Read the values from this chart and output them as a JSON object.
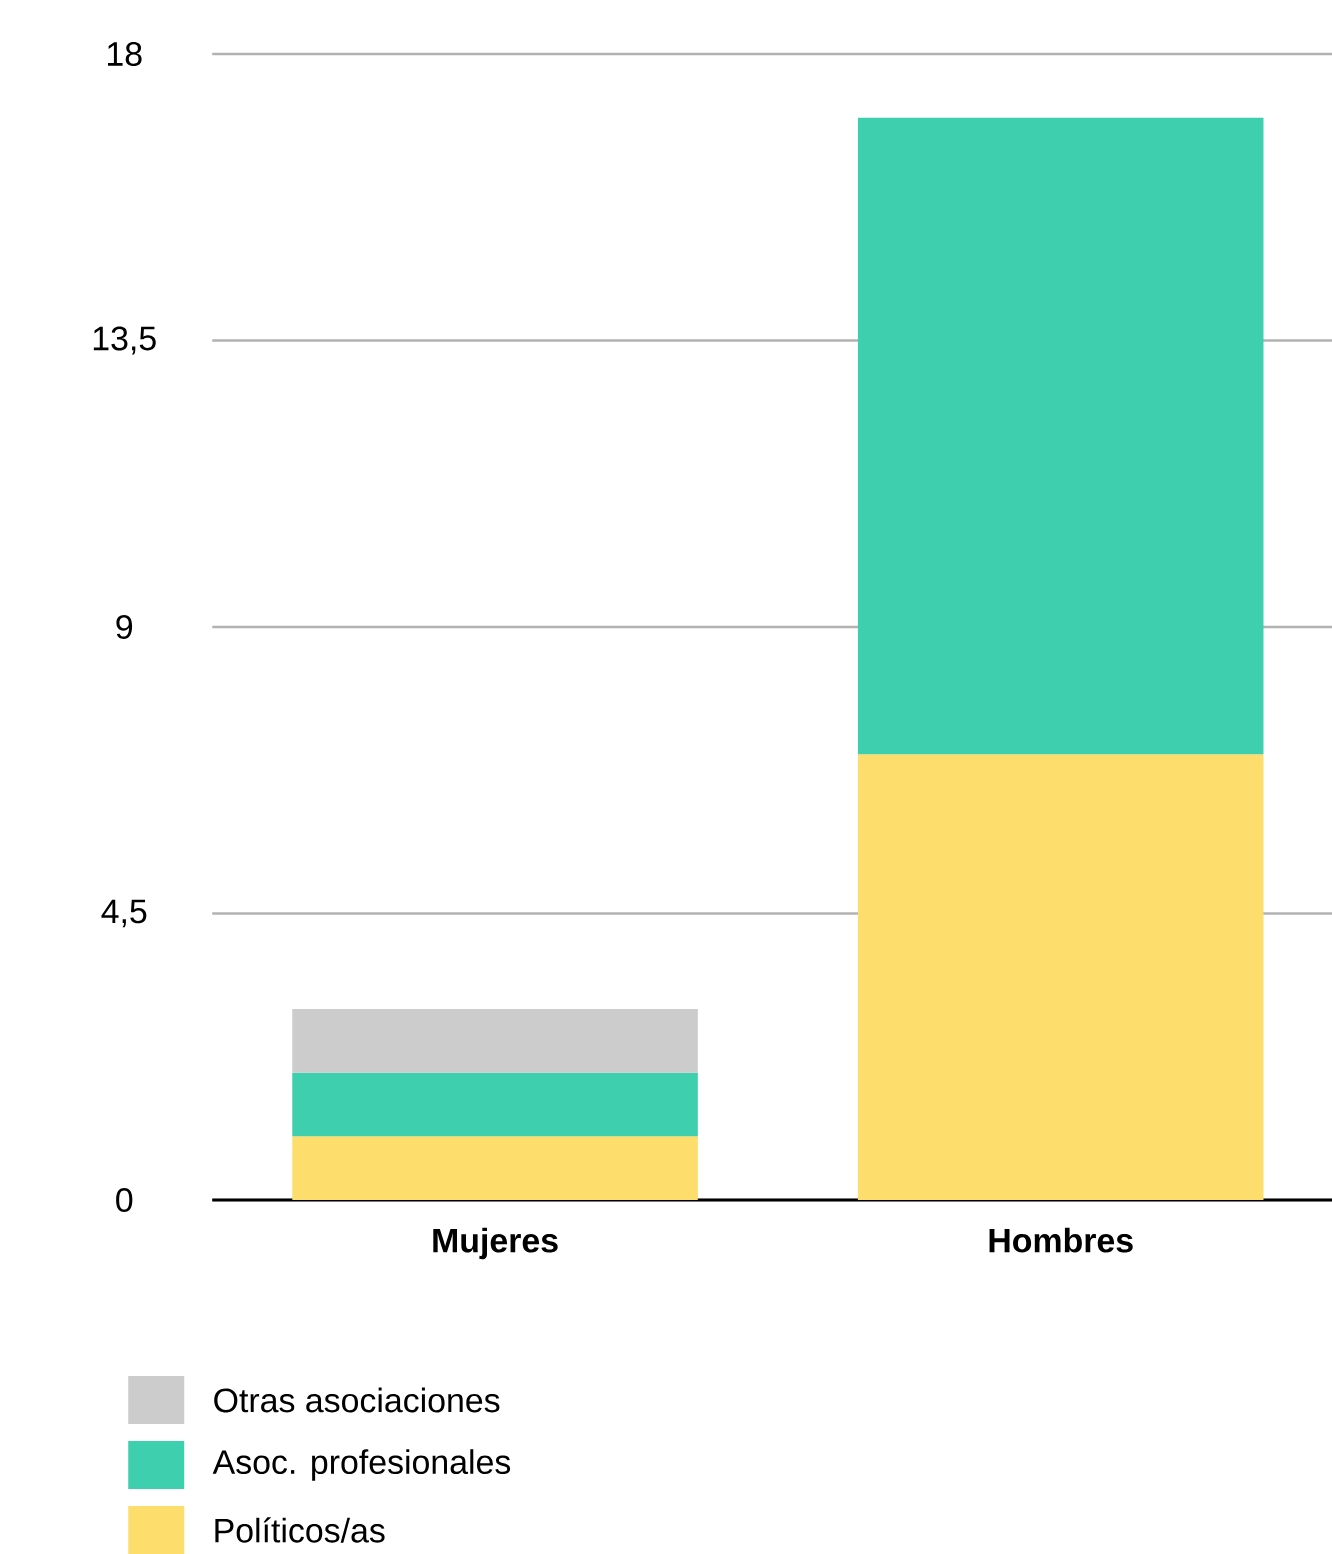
{
  "chart_data": {
    "type": "bar",
    "stacked": true,
    "categories": [
      "**Mujeres**",
      "**Hombres**"
    ],
    "series": [
      {
        "name": "Políticos/as",
        "color": "#fddd6b",
        "values": [
          1,
          7
        ]
      },
      {
        "name": "Asoc. profesionales",
        "color": "#3ecfaf",
        "values": [
          1,
          10
        ]
      },
      {
        "name": "Otras asociaciones",
        "color": "#cccccc",
        "values": [
          1,
          null
        ]
      }
    ],
    "ylim": [
      0,
      18
    ],
    "yticks": [
      0,
      {
        "value": 4.5,
        "label": "4,5"
      },
      9,
      {
        "value": 13.5,
        "label": "13,5"
      },
      18
    ],
    "grid": "y",
    "legend": "bottom"
  }
}
